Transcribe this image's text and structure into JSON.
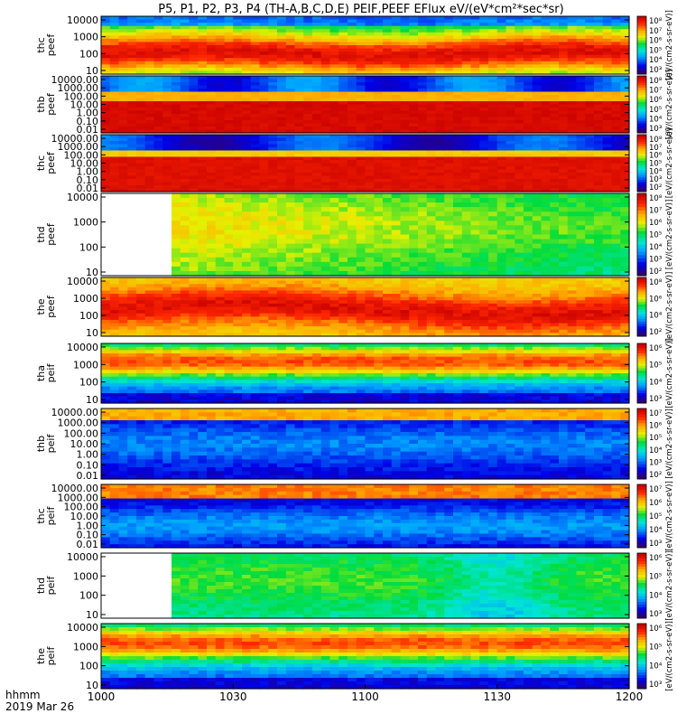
{
  "chart_data": {
    "type": "heatmap",
    "title": "P5, P1, P2, P3, P4 (TH-A,B,C,D,E) PEIF,PEEF EFlux eV/(eV*cm²*sec*sr)",
    "x_label_line1": "hhmm",
    "x_label_line2": "2019 Mar 26",
    "x_ticks": [
      "1000",
      "1030",
      "1100",
      "1130",
      "1200"
    ],
    "x_range_hhmm": [
      "1000",
      "1200"
    ],
    "colorbar_label": "[eV/(cm2-s-sr-eV)]",
    "panels": [
      {
        "id": "thc_peef",
        "ylabel": [
          "thc",
          "peef"
        ],
        "y_ticks": [
          "10000",
          "1000",
          "100",
          "10"
        ],
        "y_range": [
          7,
          30000
        ],
        "cbar_ticks": [
          "10⁸",
          "10⁷",
          "10⁶",
          "10⁵",
          "10⁴",
          "10³"
        ],
        "profile": "peef_hot",
        "missing_until": 0
      },
      {
        "id": "thb_peef",
        "ylabel": [
          "thb",
          "peef"
        ],
        "y_ticks": [
          "10000.00",
          "1000.00",
          "100.00",
          "10.00",
          "1.00",
          "0.10",
          "0.01"
        ],
        "y_range": [
          0.005,
          30000
        ],
        "cbar_ticks": [
          "10⁸",
          "10⁷",
          "10⁶",
          "10⁵",
          "10⁴",
          "10³"
        ],
        "profile": "lowE_dense",
        "missing_until": 0
      },
      {
        "id": "thc_peef_2",
        "ylabel": [
          "thc",
          "peef"
        ],
        "y_ticks": [
          "10000.00",
          "1000.00",
          "100.00",
          "10.00",
          "1.00",
          "0.10",
          "0.01"
        ],
        "y_range": [
          0.005,
          30000
        ],
        "cbar_ticks": [
          "10⁸",
          "10⁷",
          "10⁶",
          "10⁵",
          "10⁴",
          "10³",
          "10²"
        ],
        "profile": "lowE_dense2",
        "missing_until": 0
      },
      {
        "id": "thd_peef",
        "ylabel": [
          "thd",
          "peef"
        ],
        "y_ticks": [
          "10000",
          "1000",
          "100",
          "10"
        ],
        "y_range": [
          7,
          30000
        ],
        "cbar_ticks": [
          "10⁸",
          "10⁷",
          "10⁶",
          "10⁵",
          "10⁴",
          "10³",
          "10²"
        ],
        "profile": "thd_peef",
        "missing_until": 1016
      },
      {
        "id": "the_peef",
        "ylabel": [
          "the",
          "peef"
        ],
        "y_ticks": [
          "10000",
          "1000",
          "100",
          "10"
        ],
        "y_range": [
          7,
          30000
        ],
        "cbar_ticks": [
          "10⁸",
          "10⁶",
          "10⁴",
          "10²"
        ],
        "profile": "peef_the",
        "missing_until": 0
      },
      {
        "id": "tha_peif",
        "ylabel": [
          "tha",
          "peif"
        ],
        "y_ticks": [
          "10000",
          "1000",
          "100",
          "10"
        ],
        "y_range": [
          7,
          30000
        ],
        "cbar_ticks": [
          "10⁶",
          "10⁵",
          "10⁴",
          "10³"
        ],
        "profile": "peif",
        "missing_until": 0
      },
      {
        "id": "thb_peif",
        "ylabel": [
          "thb",
          "peif"
        ],
        "y_ticks": [
          "10000.00",
          "1000.00",
          "100.00",
          "10.00",
          "1.00",
          "0.10",
          "0.01"
        ],
        "y_range": [
          0.005,
          30000
        ],
        "cbar_ticks": [
          "10⁷",
          "10⁶",
          "10⁵",
          "10⁴",
          "10³",
          "10²"
        ],
        "profile": "peif_cold",
        "missing_until": 0
      },
      {
        "id": "thc_peif",
        "ylabel": [
          "thc",
          "peif"
        ],
        "y_ticks": [
          "10000.00",
          "1000.00",
          "100.00",
          "10.00",
          "1.00",
          "0.10",
          "0.01"
        ],
        "y_range": [
          0.005,
          30000
        ],
        "cbar_ticks": [
          "10⁷",
          "10⁶",
          "10⁵",
          "10⁴",
          "10³"
        ],
        "profile": "peif_cold2",
        "missing_until": 0
      },
      {
        "id": "thd_peif",
        "ylabel": [
          "thd",
          "peif"
        ],
        "y_ticks": [
          "10000",
          "1000",
          "100",
          "10"
        ],
        "y_range": [
          7,
          30000
        ],
        "cbar_ticks": [
          "10⁶",
          "10⁵",
          "10⁴",
          "10³"
        ],
        "profile": "thd_peif",
        "missing_until": 1016
      },
      {
        "id": "the_peif",
        "ylabel": [
          "the",
          "peif"
        ],
        "y_ticks": [
          "10000",
          "1000",
          "100",
          "10"
        ],
        "y_range": [
          7,
          30000
        ],
        "cbar_ticks": [
          "10⁶",
          "10⁵",
          "10⁴",
          "10³"
        ],
        "profile": "peif",
        "missing_until": 0
      }
    ]
  }
}
